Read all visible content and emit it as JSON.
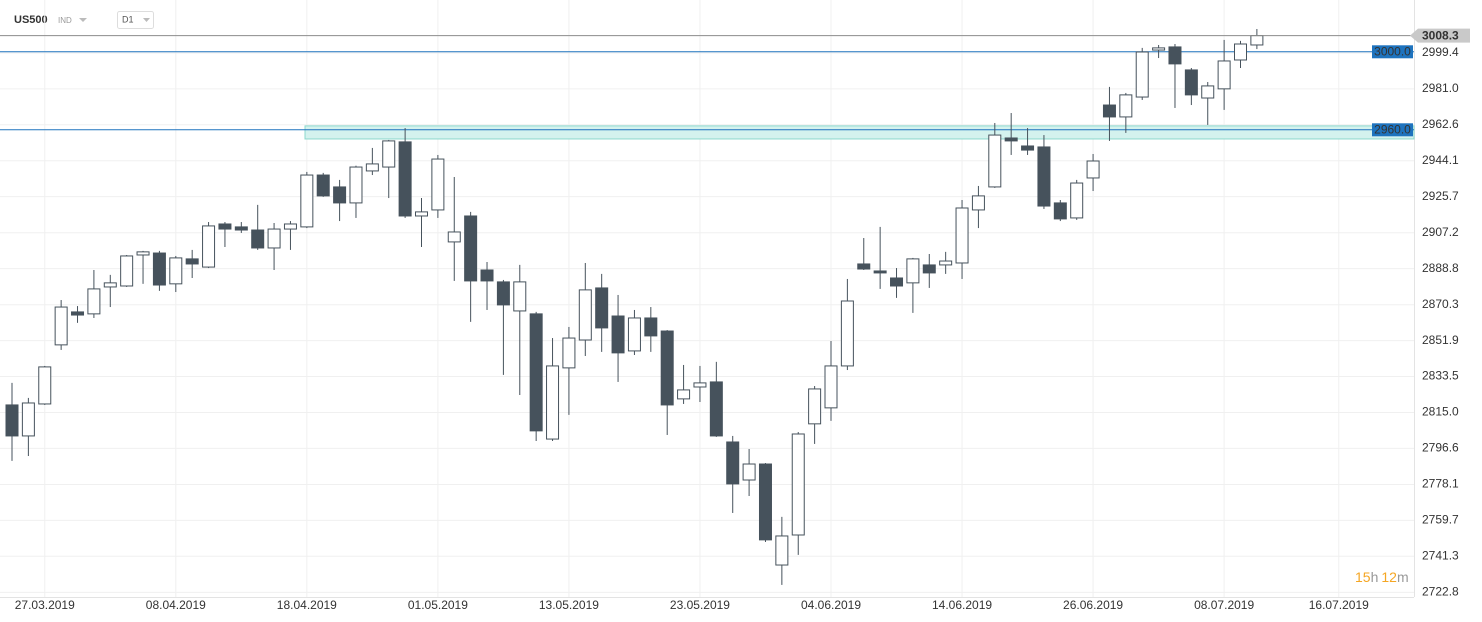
{
  "chart_data": {
    "type": "candlestick",
    "symbol": "US500",
    "market": "IND",
    "timeframe": "D1",
    "categories": [
      null,
      null,
      "27.03.2019",
      null,
      null,
      null,
      null,
      null,
      null,
      null,
      "08.04.2019",
      null,
      null,
      null,
      null,
      null,
      null,
      null,
      "18.04.2019",
      null,
      null,
      null,
      null,
      null,
      null,
      null,
      "01.05.2019",
      null,
      null,
      null,
      null,
      null,
      null,
      null,
      "13.05.2019",
      null,
      null,
      null,
      null,
      null,
      null,
      null,
      "23.05.2019",
      null,
      null,
      null,
      null,
      null,
      null,
      null,
      "04.06.2019",
      null,
      null,
      null,
      null,
      null,
      null,
      null,
      "14.06.2019",
      null,
      null,
      null,
      null,
      null,
      null,
      null,
      "26.06.2019",
      null,
      null,
      null,
      null,
      null,
      null,
      null,
      "08.07.2019",
      null,
      null,
      null,
      null,
      null,
      null,
      "16.07.2019"
    ],
    "open": [
      2818.9,
      2803.0,
      2819.4,
      2849.7,
      2866.6,
      2865.6,
      2879.4,
      2879.9,
      2895.8,
      2896.8,
      2881.0,
      2893.8,
      2889.6,
      2911.7,
      2910.2,
      2908.6,
      2899.4,
      2909.1,
      2910.2,
      2936.8,
      2930.7,
      2922.5,
      2938.9,
      2940.9,
      2953.8,
      2915.8,
      2918.9,
      2902.5,
      2915.8,
      2888.1,
      2882.0,
      2867.1,
      2865.6,
      2801.4,
      2837.9,
      2852.2,
      2878.9,
      2864.5,
      2846.6,
      2863.5,
      2856.8,
      2822.0,
      2828.1,
      2830.7,
      2799.9,
      2780.4,
      2788.6,
      2736.8,
      2752.2,
      2809.2,
      2817.4,
      2838.9,
      2891.2,
      2887.6,
      2884.0,
      2881.5,
      2890.7,
      2890.7,
      2891.7,
      2918.9,
      2930.7,
      2955.8,
      2951.7,
      2951.2,
      2922.5,
      2914.8,
      2935.3,
      2972.7,
      2966.6,
      2976.8,
      3000.9,
      3002.5,
      2990.7,
      2976.3,
      2981.0,
      2995.8,
      3003.5,
      null,
      null,
      null,
      null,
      null
    ],
    "high": [
      2830.2,
      2822.5,
      2838.9,
      2872.7,
      2869.6,
      2888.1,
      2885.6,
      2895.8,
      2897.9,
      2897.9,
      2895.3,
      2898.4,
      2912.7,
      2912.7,
      2912.7,
      2921.5,
      2912.2,
      2913.2,
      2938.4,
      2937.9,
      2934.3,
      2941.6,
      2950.7,
      2954.8,
      2960.9,
      2925.0,
      2947.1,
      2935.8,
      2917.9,
      2892.2,
      2883.0,
      2890.7,
      2866.6,
      2853.2,
      2858.9,
      2891.7,
      2886.1,
      2875.3,
      2867.6,
      2869.1,
      2857.3,
      2839.4,
      2838.9,
      2841.0,
      2803.0,
      2796.3,
      2789.1,
      2761.5,
      2805.0,
      2828.6,
      2851.7,
      2883.5,
      2904.5,
      2910.2,
      2889.1,
      2894.3,
      2896.3,
      2897.4,
      2924.0,
      2931.2,
      2963.5,
      2968.6,
      2960.9,
      2957.3,
      2924.0,
      2934.3,
      2947.6,
      2982.0,
      2978.9,
      3002.0,
      3003.5,
      3004.0,
      2991.7,
      2984.5,
      3006.1,
      3005.6,
      3011.7,
      null,
      null,
      null,
      null,
      null
    ],
    "low": [
      2790.2,
      2792.7,
      2818.9,
      2847.1,
      2861.0,
      2863.5,
      2869.1,
      2879.4,
      2881.0,
      2877.4,
      2876.8,
      2884.0,
      2889.1,
      2899.9,
      2907.1,
      2898.4,
      2888.1,
      2898.4,
      2909.6,
      2925.6,
      2913.2,
      2914.8,
      2936.8,
      2925.0,
      2914.8,
      2899.9,
      2914.8,
      2882.5,
      2861.5,
      2867.6,
      2834.3,
      2824.0,
      2800.4,
      2800.4,
      2813.8,
      2844.0,
      2846.1,
      2830.7,
      2844.5,
      2846.1,
      2803.5,
      2819.4,
      2820.4,
      2802.5,
      2763.5,
      2772.2,
      2748.6,
      2726.6,
      2742.0,
      2798.9,
      2810.7,
      2836.8,
      2888.1,
      2878.4,
      2873.8,
      2866.1,
      2878.9,
      2886.1,
      2883.5,
      2909.6,
      2930.2,
      2947.1,
      2947.1,
      2919.4,
      2913.2,
      2913.8,
      2928.6,
      2954.3,
      2958.4,
      2975.3,
      2996.8,
      2971.2,
      2972.7,
      2962.5,
      2970.2,
      2991.7,
      3001.4,
      null,
      null,
      null,
      null,
      null
    ],
    "close": [
      2803.0,
      2819.9,
      2838.4,
      2869.1,
      2865.0,
      2878.4,
      2881.5,
      2895.3,
      2897.4,
      2880.4,
      2894.3,
      2891.2,
      2910.7,
      2909.1,
      2908.6,
      2899.4,
      2909.1,
      2911.7,
      2936.8,
      2926.1,
      2922.5,
      2940.9,
      2942.5,
      2954.3,
      2915.8,
      2917.9,
      2945.0,
      2907.6,
      2882.5,
      2882.5,
      2870.2,
      2882.0,
      2805.6,
      2838.9,
      2853.2,
      2877.9,
      2858.4,
      2845.6,
      2863.5,
      2854.3,
      2818.9,
      2826.6,
      2830.2,
      2803.0,
      2778.4,
      2788.6,
      2749.7,
      2751.7,
      2804.0,
      2827.1,
      2838.9,
      2872.2,
      2888.6,
      2886.6,
      2879.9,
      2893.8,
      2886.6,
      2892.7,
      2919.9,
      2926.1,
      2957.3,
      2954.3,
      2949.6,
      2920.9,
      2914.3,
      2932.7,
      2944.0,
      2966.6,
      2977.9,
      2999.9,
      3002.0,
      2993.8,
      2977.9,
      2982.5,
      2995.3,
      3004.0,
      3008.3,
      null,
      null,
      null,
      null,
      null
    ],
    "up_color": "#ffffff",
    "down_color": "#46525c",
    "outline_color": "#46525c",
    "ylim": [
      2720.4,
      3024.0
    ],
    "yticks": [
      2722.8,
      2741.3,
      2759.7,
      2778.1,
      2796.6,
      {
        "value": 2815,
        "label": "2815.0"
      },
      2833.5,
      2851.9,
      2870.3,
      2888.8,
      2907.2,
      2925.7,
      2944.1,
      2962.6,
      {
        "value": 2981,
        "label": "2981.0"
      },
      2999.4
    ],
    "grid": true,
    "last_price": {
      "value": 3008.3,
      "color": "#8c8c8c",
      "tag_color": "#c9c9c9"
    },
    "levels": [
      {
        "value": 3000,
        "label": "3000.0"
      },
      {
        "value": 2960,
        "label": "2960.0"
      }
    ],
    "level_color": "#1e73be",
    "zone": {
      "from": 2955.3,
      "to": 2962.0,
      "color": "#d4f2ee",
      "border": "#8dd8cd"
    },
    "countdown": {
      "hours": "15",
      "hours_unit": "h",
      "minutes": "12",
      "minutes_unit": "m",
      "color": "#f5a623"
    }
  }
}
